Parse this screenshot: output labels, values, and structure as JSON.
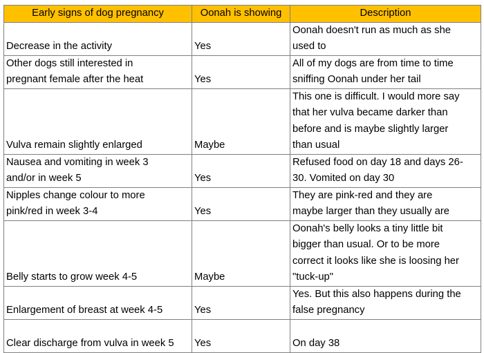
{
  "table": {
    "headers": [
      "Early signs of dog pregnancy",
      "Oonah is showing",
      "Description"
    ],
    "header_color": "#ffc000",
    "rows": [
      {
        "sign": "Decrease in the activity",
        "showing": "Yes",
        "description": "Oonah doesn't run as much as she\nused to"
      },
      {
        "sign": "Other dogs still interested in\npregnant female after the heat",
        "showing": "Yes",
        "description": "All of my dogs are from time to time\nsniffing Oonah under her tail"
      },
      {
        "sign": "Vulva remain slightly enlarged",
        "showing": "Maybe",
        "description": "This one is difficult. I would more say\nthat her vulva became darker than\nbefore and is maybe slightly larger\nthan usual"
      },
      {
        "sign": "Nausea and vomiting in week 3\nand/or in week 5",
        "showing": "Yes",
        "description": "Refused food on day 18 and days 26-\n30. Vomited on day 30"
      },
      {
        "sign": "Nipples change colour to more\npink/red in week 3-4",
        "showing": "Yes",
        "description": "They are pink-red and they are\nmaybe larger than they usually are"
      },
      {
        "sign": "Belly starts to grow week 4-5",
        "showing": "Maybe",
        "description": "Oonah's belly looks a tiny little bit\nbigger than usual. Or to be more\ncorrect it looks like she is loosing her\n\"tuck-up\""
      },
      {
        "sign": "Enlargement of breast at week 4-5",
        "showing": "Yes",
        "description": "Yes. But this also happens during the\nfalse pregnancy"
      },
      {
        "sign": "Clear discharge from vulva in week 5",
        "showing": "Yes",
        "description": "\nOn day 38"
      }
    ]
  }
}
